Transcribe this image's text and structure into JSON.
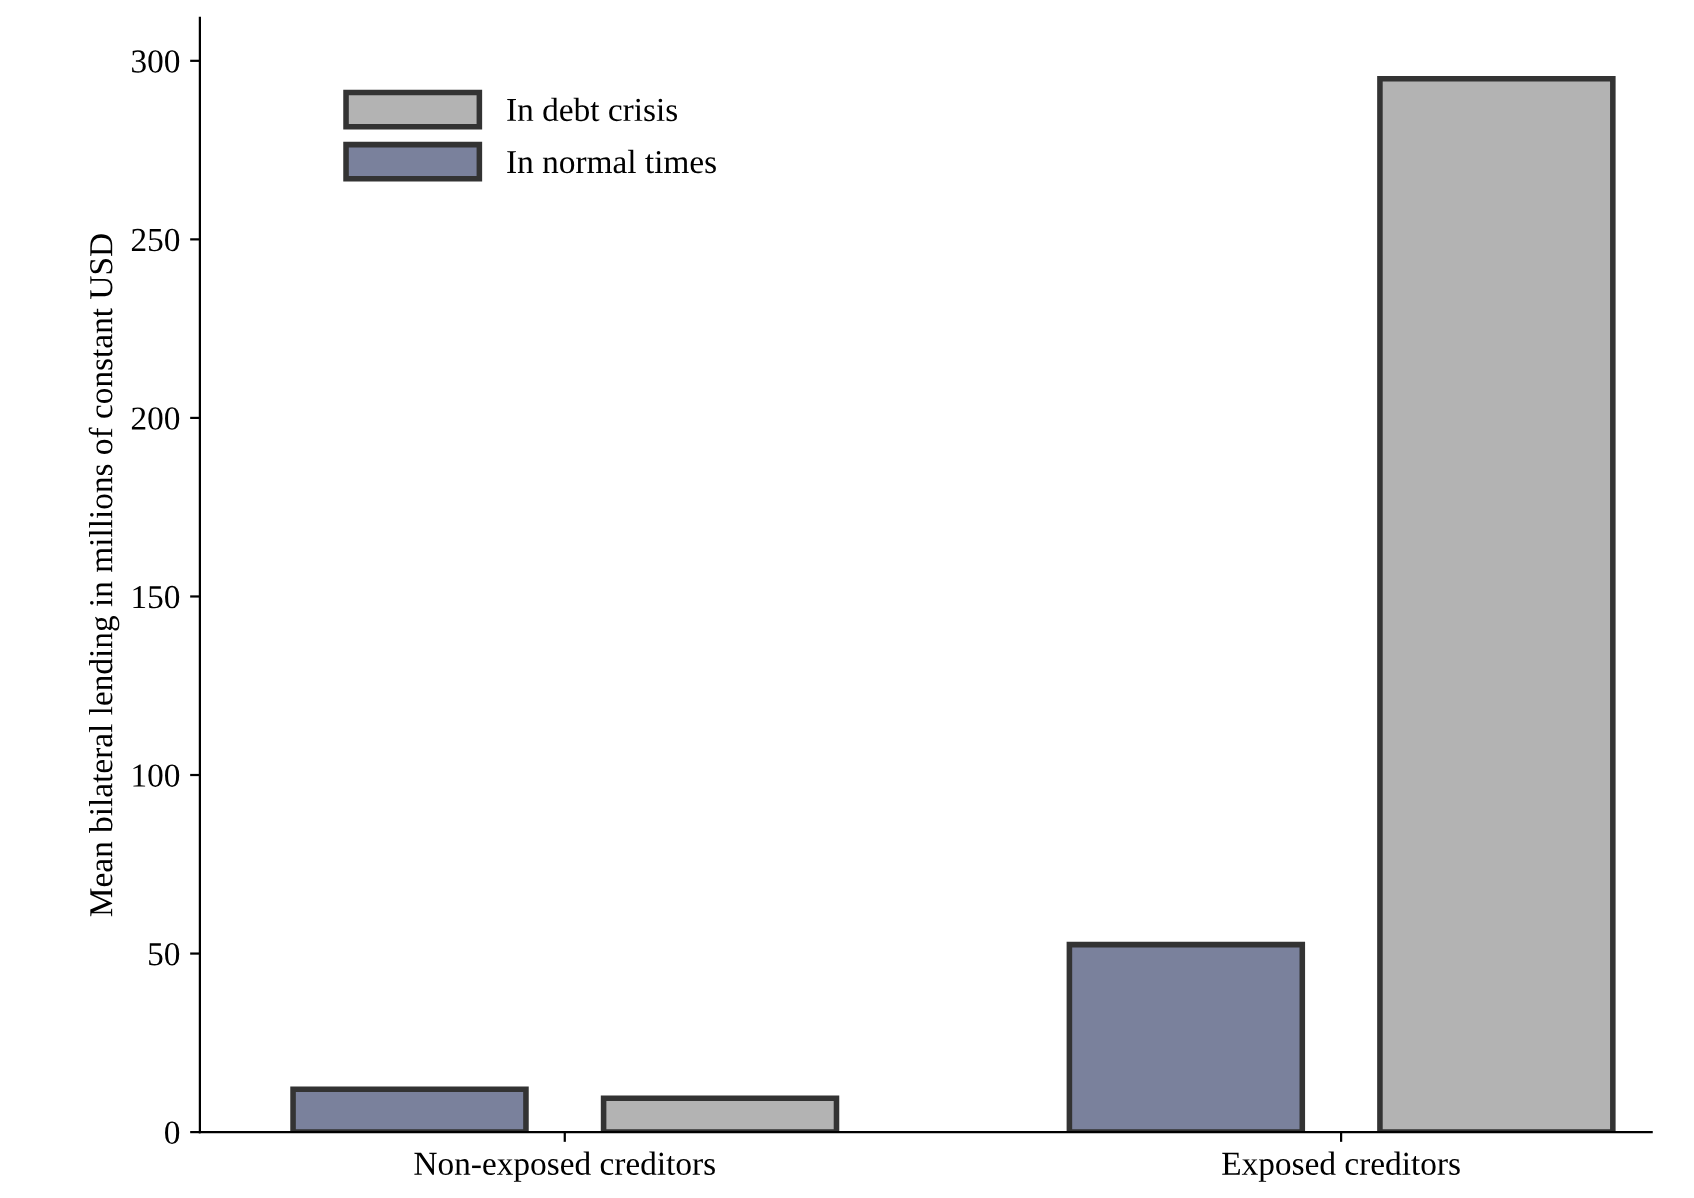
{
  "chart_data": {
    "type": "bar",
    "ylabel": "Mean bilateral lending in millions of constant USD",
    "categories": [
      "Non-exposed creditors",
      "Exposed creditors"
    ],
    "series": [
      {
        "name": "In normal times",
        "color": "#7a819c",
        "values": [
          12,
          52.5
        ]
      },
      {
        "name": "In debt crisis",
        "color": "#b3b3b3",
        "values": [
          9.5,
          295
        ]
      }
    ],
    "ylim": [
      0,
      312
    ],
    "yticks": [
      0,
      50,
      100,
      150,
      200,
      250,
      300
    ],
    "grid": false,
    "legend": "top left"
  }
}
